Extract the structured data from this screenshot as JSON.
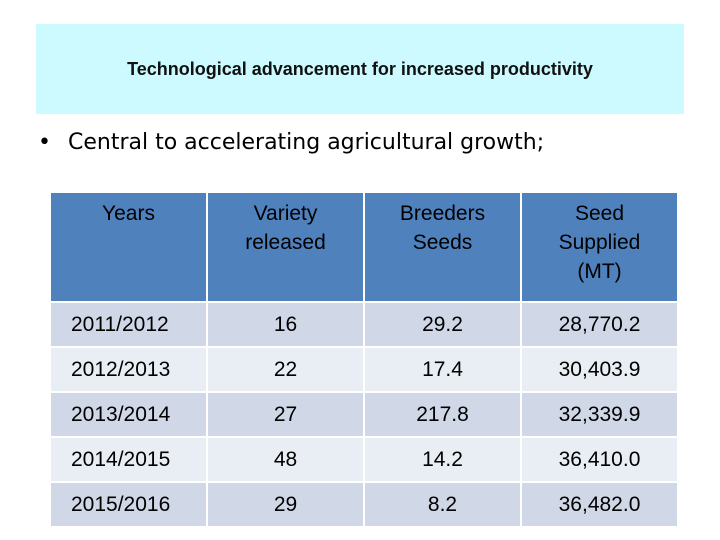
{
  "title": "Technological advancement for increased productivity",
  "bullet": {
    "marker": "•",
    "text": "Central to accelerating agricultural growth;"
  },
  "table": {
    "headers": [
      "Years",
      "Variety\nreleased",
      "Breeders\nSeeds",
      "Seed\nSupplied\n(MT)"
    ],
    "rows": [
      [
        "2011/2012",
        "16",
        "29.2",
        "28,770.2"
      ],
      [
        "2012/2013",
        "22",
        "17.4",
        "30,403.9"
      ],
      [
        "2013/2014",
        "27",
        "217.8",
        "32,339.9"
      ],
      [
        "2014/2015",
        "48",
        "14.2",
        "36,410.0"
      ],
      [
        "2015/2016",
        "29",
        "8.2",
        "36,482.0"
      ]
    ]
  },
  "colors": {
    "title_background": "#ccfaff",
    "header_background": "#4f81bd",
    "row_dark": "#d0d8e8",
    "row_light": "#e9edf4"
  }
}
